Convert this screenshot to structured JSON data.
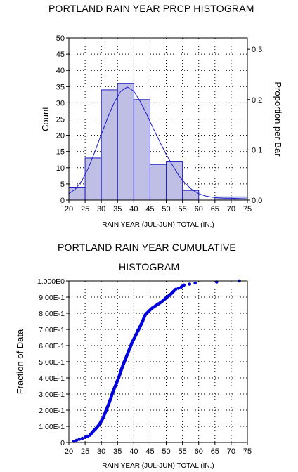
{
  "colors": {
    "bar_fill": "#bfbfe6",
    "bar_stroke": "#2020c0",
    "curve": "#1a1acc",
    "points": "#0000dd",
    "grid": "#000000"
  },
  "chart_data": [
    {
      "type": "bar",
      "title": "PORTLAND RAIN YEAR PRCP HISTOGRAM",
      "xlabel": "RAIN YEAR (JUL-JUN) TOTAL (IN.)",
      "ylabel": "Count",
      "y2label": "Proportion per Bar",
      "bin_edges": [
        20,
        25,
        30,
        35,
        40,
        45,
        50,
        55,
        60,
        65,
        70,
        75
      ],
      "values": [
        4,
        13,
        34,
        36,
        31,
        11,
        12,
        3,
        0,
        1,
        1
      ],
      "xlim": [
        20,
        75
      ],
      "ylim": [
        0,
        50
      ],
      "xticks": [
        "20",
        "25",
        "30",
        "35",
        "40",
        "45",
        "50",
        "55",
        "60",
        "65",
        "70",
        "75"
      ],
      "yticks": [
        "0",
        "5",
        "10",
        "15",
        "20",
        "25",
        "30",
        "35",
        "40",
        "45",
        "50"
      ],
      "y2ticks": [
        "0.0",
        "0.1",
        "0.2",
        "0.3"
      ],
      "y2_per_count": 0.006452,
      "density_curve": {
        "x": [
          20,
          22,
          24,
          26,
          28,
          30,
          32,
          34,
          36,
          38,
          40,
          42,
          44,
          46,
          48,
          50,
          52,
          54,
          56,
          58,
          60,
          62,
          64,
          66,
          68,
          70,
          72,
          75
        ],
        "y": [
          2.0,
          3.4,
          6.0,
          9.9,
          14.9,
          20.3,
          25.5,
          30.2,
          33.6,
          34.9,
          33.6,
          30.4,
          26.4,
          22.1,
          18.0,
          14.1,
          10.6,
          7.4,
          5.0,
          3.2,
          2.0,
          1.3,
          0.9,
          0.7,
          0.6,
          0.6,
          0.5,
          0.4
        ]
      },
      "grid": true
    },
    {
      "type": "scatter",
      "title": "PORTLAND RAIN YEAR CUMULATIVE HISTOGRAM",
      "title_line1": "PORTLAND RAIN YEAR CUMULATIVE",
      "title_line2": "HISTOGRAM",
      "xlabel": "RAIN YEAR (JUL-JUN) TOTAL (IN.)",
      "ylabel": "Fraction of Data",
      "xlim": [
        20,
        75
      ],
      "ylim": [
        0,
        1
      ],
      "xticks": [
        "20",
        "25",
        "30",
        "35",
        "40",
        "45",
        "50",
        "55",
        "60",
        "65",
        "70",
        "75"
      ],
      "yticks": [
        "0",
        "1.00E-1",
        "2.00E-1",
        "3.00E-1",
        "4.00E-1",
        "5.00E-1",
        "6.00E-1",
        "7.00E-1",
        "8.00E-1",
        "9.00E-1",
        "1.000E0"
      ],
      "cdf_knots": {
        "x": [
          21.3,
          23,
          25,
          26.5,
          27.5,
          28.5,
          29.5,
          30.5,
          31.5,
          32.5,
          33.5,
          34.5,
          35.5,
          36.5,
          37.5,
          38.5,
          39.5,
          40.5,
          41.5,
          42.5,
          43.5,
          44.5,
          45.5,
          47,
          48.5,
          50,
          51.5,
          53,
          54.5,
          55.5,
          58.5,
          59.5,
          68,
          72.5
        ],
        "y": [
          0.005,
          0.018,
          0.032,
          0.045,
          0.07,
          0.09,
          0.115,
          0.15,
          0.2,
          0.25,
          0.31,
          0.36,
          0.41,
          0.47,
          0.52,
          0.57,
          0.62,
          0.66,
          0.7,
          0.74,
          0.79,
          0.81,
          0.83,
          0.85,
          0.87,
          0.895,
          0.92,
          0.95,
          0.96,
          0.975,
          0.985,
          0.99,
          0.995,
          1.0
        ]
      },
      "n_points": 155,
      "grid": true
    }
  ]
}
